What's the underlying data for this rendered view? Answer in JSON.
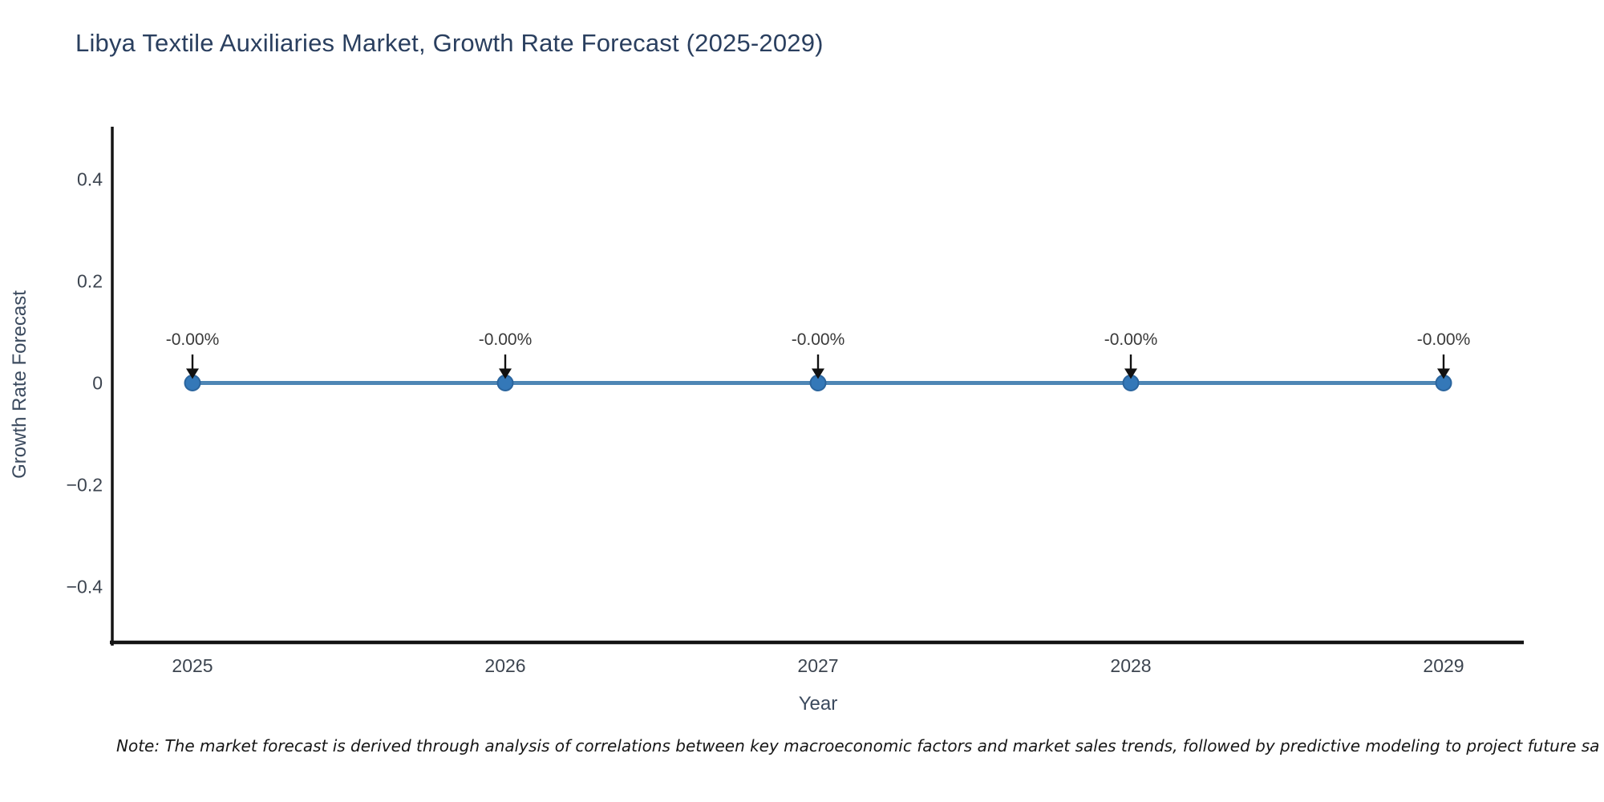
{
  "note": "Note: The market forecast is derived through analysis of correlations between key macroeconomic factors and market sales trends, followed by predictive modeling to project future sa",
  "chart_data": {
    "type": "line",
    "title": "Libya Textile Auxiliaries Market, Growth Rate Forecast (2025-2029)",
    "xlabel": "Year",
    "ylabel": "Growth Rate Forecast",
    "x": [
      2025,
      2026,
      2027,
      2028,
      2029
    ],
    "xtick_labels": [
      "2025",
      "2026",
      "2027",
      "2028",
      "2029"
    ],
    "series": [
      {
        "name": "Growth Rate Forecast",
        "values": [
          0,
          0,
          0,
          0,
          0
        ]
      }
    ],
    "point_labels": [
      "-0.00%",
      "-0.00%",
      "-0.00%",
      "-0.00%",
      "-0.00%"
    ],
    "ylim": [
      -0.5,
      0.5
    ],
    "yticks": {
      "values": [
        0.4,
        0.2,
        0,
        -0.2,
        -0.4
      ],
      "labels": [
        "0.4",
        "0.2",
        "0",
        "−0.2",
        "−0.4"
      ]
    },
    "grid": false,
    "legend_position": "none",
    "annotation_arrows": true,
    "colors": {
      "line": "#4e86b5",
      "marker_fill": "#3478b8",
      "marker_edge": "#2b659e",
      "axis_line": "#141414",
      "title_text": "#2a3f5f",
      "axis_title_text": "#3b4a5e",
      "tick_text": "#3d4550",
      "annotation_text": "#3a3a3a",
      "arrow": "#111111",
      "background": "#ffffff"
    }
  }
}
